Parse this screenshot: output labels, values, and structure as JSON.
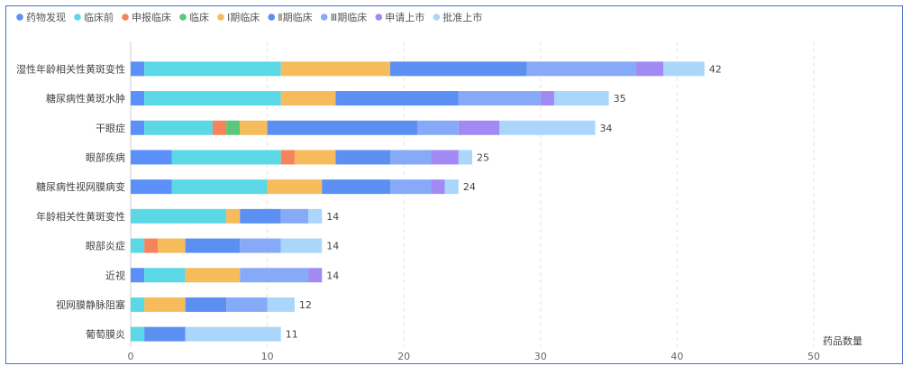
{
  "chart_data": {
    "type": "bar",
    "orientation": "horizontal",
    "stacked": true,
    "xlabel": "药品数量",
    "xlim": [
      0,
      50
    ],
    "xticks": [
      0,
      10,
      20,
      30,
      40,
      50
    ],
    "grid": "vertical dashed",
    "legend_position": "top-left",
    "categories": [
      "湿性年龄相关性黄斑变性",
      "糖尿病性黄斑水肿",
      "干眼症",
      "眼部疾病",
      "糖尿病性视网膜病变",
      "年龄相关性黄斑变性",
      "眼部炎症",
      "近视",
      "视网膜静脉阻塞",
      "葡萄膜炎"
    ],
    "totals": [
      42,
      35,
      34,
      25,
      24,
      14,
      14,
      14,
      12,
      11
    ],
    "series": [
      {
        "name": "药物发现",
        "color": "#5b8ff9",
        "values": [
          1,
          1,
          1,
          3,
          3,
          0,
          0,
          1,
          0,
          0
        ]
      },
      {
        "name": "临床前",
        "color": "#5ad8e6",
        "values": [
          10,
          10,
          5,
          8,
          7,
          7,
          1,
          3,
          1,
          1
        ]
      },
      {
        "name": "申报临床",
        "color": "#f6845b",
        "values": [
          0,
          0,
          1,
          1,
          0,
          0,
          1,
          0,
          0,
          0
        ]
      },
      {
        "name": "临床",
        "color": "#5ac77b",
        "values": [
          0,
          0,
          1,
          0,
          0,
          0,
          0,
          0,
          0,
          0
        ]
      },
      {
        "name": "Ⅰ期临床",
        "color": "#f6bc5b",
        "values": [
          8,
          4,
          2,
          3,
          4,
          1,
          2,
          4,
          3,
          0
        ]
      },
      {
        "name": "Ⅱ期临床",
        "color": "#5b8ff2",
        "values": [
          10,
          9,
          11,
          4,
          5,
          3,
          4,
          0,
          3,
          3
        ]
      },
      {
        "name": "Ⅲ期临床",
        "color": "#86aaf7",
        "values": [
          8,
          6,
          3,
          3,
          3,
          2,
          3,
          5,
          3,
          0
        ]
      },
      {
        "name": "申请上市",
        "color": "#a28af4",
        "values": [
          2,
          1,
          3,
          2,
          1,
          0,
          0,
          1,
          0,
          0
        ]
      },
      {
        "name": "批准上市",
        "color": "#abd6fb",
        "values": [
          3,
          4,
          7,
          1,
          1,
          1,
          3,
          0,
          2,
          7
        ]
      }
    ]
  }
}
